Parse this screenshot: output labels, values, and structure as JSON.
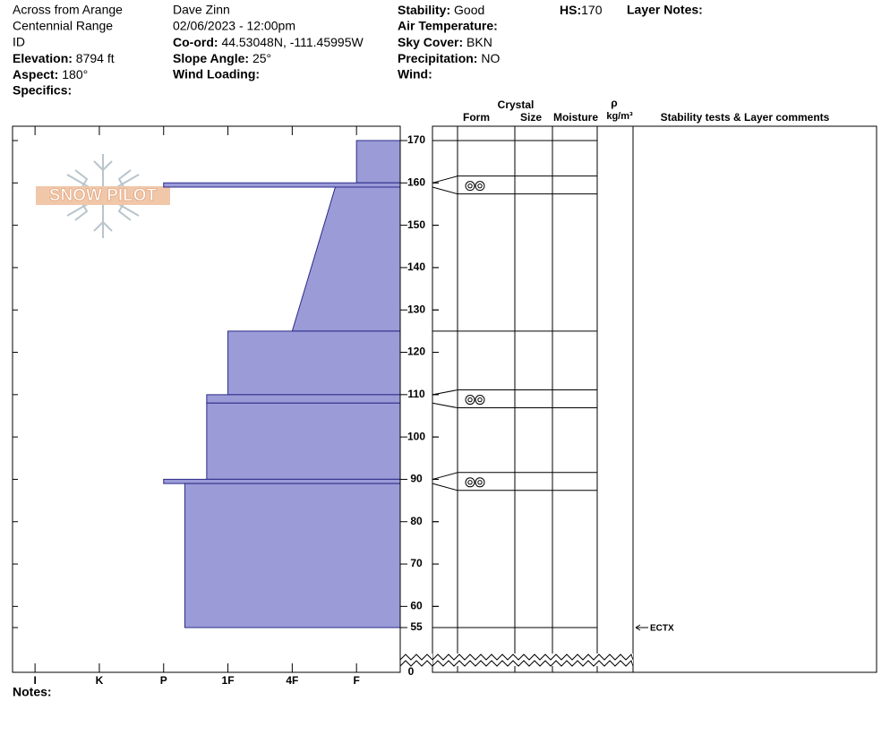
{
  "header": {
    "lines": [
      "Across from Arange",
      "Centennial Range",
      "ID"
    ],
    "observer": "Dave Zinn",
    "datetime": "02/06/2023 - 12:00pm",
    "fields": [
      {
        "label": "Elevation:",
        "value": "8794 ft"
      },
      {
        "label": "Aspect:",
        "value": "180°"
      },
      {
        "label": "Specifics:"
      },
      {
        "label": "Co-ord:",
        "value": "44.53048N, -111.45995W"
      },
      {
        "label": "Slope Angle:",
        "value": "25°"
      },
      {
        "label": "Wind Loading:"
      },
      {
        "label": "Stability:",
        "value": "Good"
      },
      {
        "label": "Air Temperature:"
      },
      {
        "label": "Sky Cover:",
        "value": "BKN"
      },
      {
        "label": "Precipitation:",
        "value": "NO"
      },
      {
        "label": "Wind:"
      },
      {
        "label": "HS:",
        "value": "170"
      },
      {
        "label": "Layer Notes:"
      }
    ],
    "notes_label": "Notes:"
  },
  "logo": "SNOW PILOT",
  "table_headers": {
    "crystal": "Crystal",
    "form": "Form",
    "size": "Size",
    "moisture": "Moisture",
    "rho": "ρ",
    "density_unit": "kg/m³",
    "comments": "Stability tests & Layer comments"
  },
  "chart_data": {
    "type": "snow-profile",
    "ylim": [
      55,
      170
    ],
    "yticks": [
      170,
      160,
      150,
      140,
      130,
      120,
      110,
      100,
      90,
      80,
      70,
      60,
      55
    ],
    "ground": 0,
    "xlim": [
      6.35,
      0.32
    ],
    "xticks": [
      {
        "value": 6,
        "label": "I"
      },
      {
        "value": 5,
        "label": "K"
      },
      {
        "value": 4,
        "label": "P"
      },
      {
        "value": 3,
        "label": "1F"
      },
      {
        "value": 2,
        "label": "4F"
      },
      {
        "value": 1,
        "label": "F"
      }
    ],
    "color": "#9b9bd8",
    "layers": [
      {
        "top": 170,
        "bottom": 160,
        "hardness_top": 1,
        "hardness_bottom": 1
      },
      {
        "top": 160,
        "bottom": 159,
        "hardness_top": 4,
        "hardness_bottom": 4
      },
      {
        "top": 159,
        "bottom": 125,
        "hardness_top": 1.33,
        "hardness_bottom": 2
      },
      {
        "top": 125,
        "bottom": 110,
        "hardness_top": 3,
        "hardness_bottom": 3
      },
      {
        "top": 110,
        "bottom": 108,
        "hardness_top": 3.33,
        "hardness_bottom": 3.33
      },
      {
        "top": 108,
        "bottom": 90,
        "hardness_top": 3.33,
        "hardness_bottom": 3.33
      },
      {
        "top": 90,
        "bottom": 89,
        "hardness_top": 4,
        "hardness_bottom": 4
      },
      {
        "top": 89,
        "bottom": 55,
        "hardness_top": 3.67,
        "hardness_bottom": 3.67
      }
    ],
    "tests": [
      {
        "depth": 55,
        "result": "ECTX"
      }
    ]
  }
}
